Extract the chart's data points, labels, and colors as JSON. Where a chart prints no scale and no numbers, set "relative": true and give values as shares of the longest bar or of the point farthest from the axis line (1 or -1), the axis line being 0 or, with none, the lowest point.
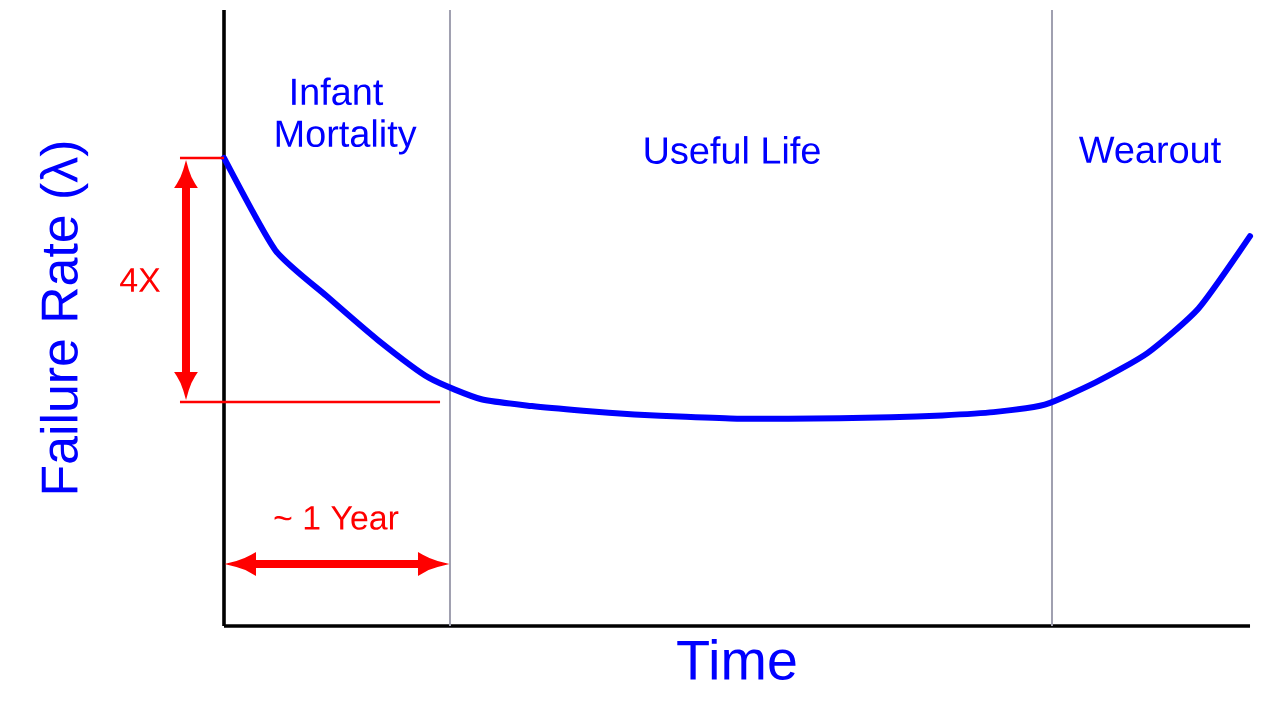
{
  "chart_data": {
    "type": "line",
    "relative": true,
    "xlabel": "Time",
    "ylabel": "Failure Rate (λ)",
    "categories": [
      null,
      null,
      null,
      null,
      null,
      null,
      null,
      null,
      null,
      null,
      null,
      null,
      null,
      null,
      null,
      null,
      null,
      null,
      null,
      null,
      null
    ],
    "series": [
      {
        "color": "#0000ff",
        "values": [
          1.0,
          0.803,
          0.705,
          0.611,
          0.53,
          0.485,
          0.47,
          0.46,
          0.452,
          0.447,
          0.443,
          0.443,
          0.444,
          0.446,
          0.45,
          0.457,
          0.473,
          0.521,
          0.583,
          0.679,
          0.833
        ]
      }
    ],
    "annotations": [
      "Infant Mortality",
      "Useful Life",
      "Wearout",
      "4X",
      "~ 1 Year"
    ],
    "marker": "none",
    "line_style": "solid"
  }
}
